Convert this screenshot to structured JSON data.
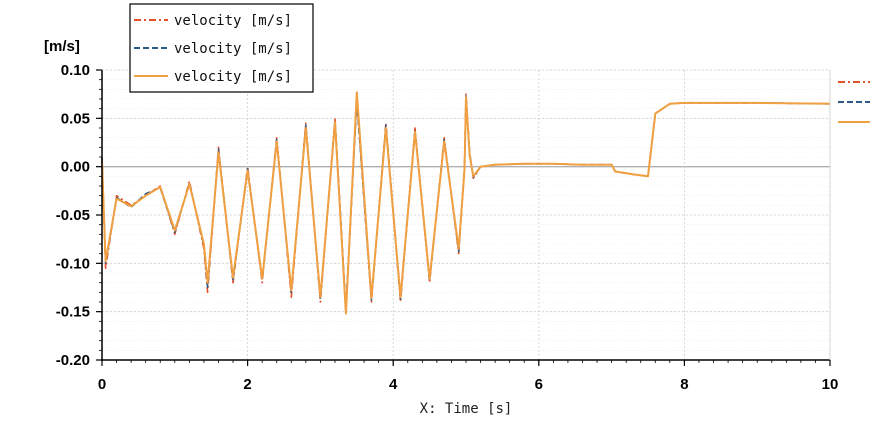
{
  "chart_data": {
    "type": "line",
    "y_unit": "[m/s]",
    "xlabel": "X: Time [s]",
    "xlim": [
      0,
      10
    ],
    "ylim": [
      -0.2,
      0.1
    ],
    "x_ticks": [
      "0",
      "2",
      "4",
      "6",
      "8",
      "10"
    ],
    "y_ticks": [
      "0.10",
      "0.05",
      "0.00",
      "-0.05",
      "-0.10",
      "-0.15",
      "-0.20"
    ],
    "grid": true,
    "legend_position": "top-left",
    "series": [
      {
        "name": "velocity [m/s]",
        "color": "#e8502a",
        "style": "dash-dot",
        "x": [
          0,
          0.05,
          0.1,
          0.2,
          0.4,
          0.6,
          0.8,
          1.0,
          1.2,
          1.4,
          1.45,
          1.6,
          1.8,
          2.0,
          2.2,
          2.4,
          2.6,
          2.8,
          3.0,
          3.2,
          3.35,
          3.5,
          3.7,
          3.9,
          4.1,
          4.3,
          4.5,
          4.7,
          4.9,
          4.98,
          5.0,
          5.05,
          5.1,
          5.2,
          5.4,
          5.8,
          6.2,
          6.6,
          7.0,
          7.05,
          7.3,
          7.5,
          7.6,
          7.8,
          8.0,
          9.0,
          10.0
        ],
        "y": [
          0.01,
          -0.105,
          -0.08,
          -0.03,
          -0.04,
          -0.03,
          -0.02,
          -0.07,
          -0.015,
          -0.085,
          -0.13,
          0.02,
          -0.12,
          0.0,
          -0.12,
          0.03,
          -0.135,
          0.045,
          -0.14,
          0.05,
          -0.15,
          0.07,
          -0.14,
          0.045,
          -0.14,
          0.04,
          -0.12,
          0.03,
          -0.09,
          0.0,
          0.075,
          0.015,
          -0.012,
          0.0,
          0.002,
          0.003,
          0.003,
          0.002,
          0.002,
          -0.005,
          -0.008,
          -0.01,
          0.055,
          0.065,
          0.066,
          0.066,
          0.065
        ]
      },
      {
        "name": "velocity [m/s]",
        "color": "#2e5a8a",
        "style": "dash",
        "x": [
          0,
          0.05,
          0.1,
          0.2,
          0.4,
          0.6,
          0.8,
          1.0,
          1.2,
          1.4,
          1.45,
          1.6,
          1.8,
          2.0,
          2.2,
          2.4,
          2.6,
          2.8,
          3.0,
          3.2,
          3.35,
          3.5,
          3.7,
          3.9,
          4.1,
          4.3,
          4.5,
          4.7,
          4.9,
          4.98,
          5.0,
          5.05,
          5.1,
          5.2,
          5.4,
          5.8,
          6.2,
          6.6,
          7.0,
          7.05,
          7.3,
          7.5,
          7.6,
          7.8,
          8.0,
          9.0,
          10.0
        ],
        "y": [
          0.008,
          -0.1,
          -0.078,
          -0.032,
          -0.042,
          -0.028,
          -0.022,
          -0.068,
          -0.017,
          -0.082,
          -0.125,
          0.018,
          -0.118,
          -0.002,
          -0.118,
          0.028,
          -0.13,
          0.043,
          -0.138,
          0.048,
          -0.147,
          0.068,
          -0.138,
          0.043,
          -0.137,
          0.038,
          -0.118,
          0.028,
          -0.088,
          -0.002,
          0.073,
          0.014,
          -0.011,
          0.0,
          0.002,
          0.003,
          0.003,
          0.002,
          0.002,
          -0.005,
          -0.008,
          -0.01,
          0.055,
          0.065,
          0.066,
          0.066,
          0.065
        ]
      },
      {
        "name": "velocity [m/s]",
        "color": "#f0a040",
        "style": "solid",
        "x": [
          0,
          0.05,
          0.1,
          0.2,
          0.4,
          0.6,
          0.8,
          1.0,
          1.2,
          1.4,
          1.45,
          1.6,
          1.8,
          2.0,
          2.2,
          2.4,
          2.6,
          2.8,
          3.0,
          3.2,
          3.35,
          3.5,
          3.7,
          3.9,
          4.1,
          4.3,
          4.5,
          4.7,
          4.9,
          4.98,
          5.0,
          5.05,
          5.1,
          5.2,
          5.4,
          5.8,
          6.2,
          6.6,
          7.0,
          7.05,
          7.3,
          7.5,
          7.6,
          7.8,
          8.0,
          9.0,
          10.0
        ],
        "y": [
          0.006,
          -0.098,
          -0.076,
          -0.033,
          -0.041,
          -0.03,
          -0.021,
          -0.066,
          -0.018,
          -0.08,
          -0.12,
          0.015,
          -0.115,
          -0.004,
          -0.116,
          0.026,
          -0.128,
          0.04,
          -0.135,
          0.046,
          -0.152,
          0.077,
          -0.136,
          0.04,
          -0.135,
          0.036,
          -0.116,
          0.026,
          -0.085,
          -0.003,
          0.072,
          0.012,
          -0.01,
          0.0,
          0.002,
          0.003,
          0.003,
          0.002,
          0.002,
          -0.005,
          -0.008,
          -0.01,
          0.055,
          0.065,
          0.066,
          0.066,
          0.065
        ]
      }
    ]
  }
}
